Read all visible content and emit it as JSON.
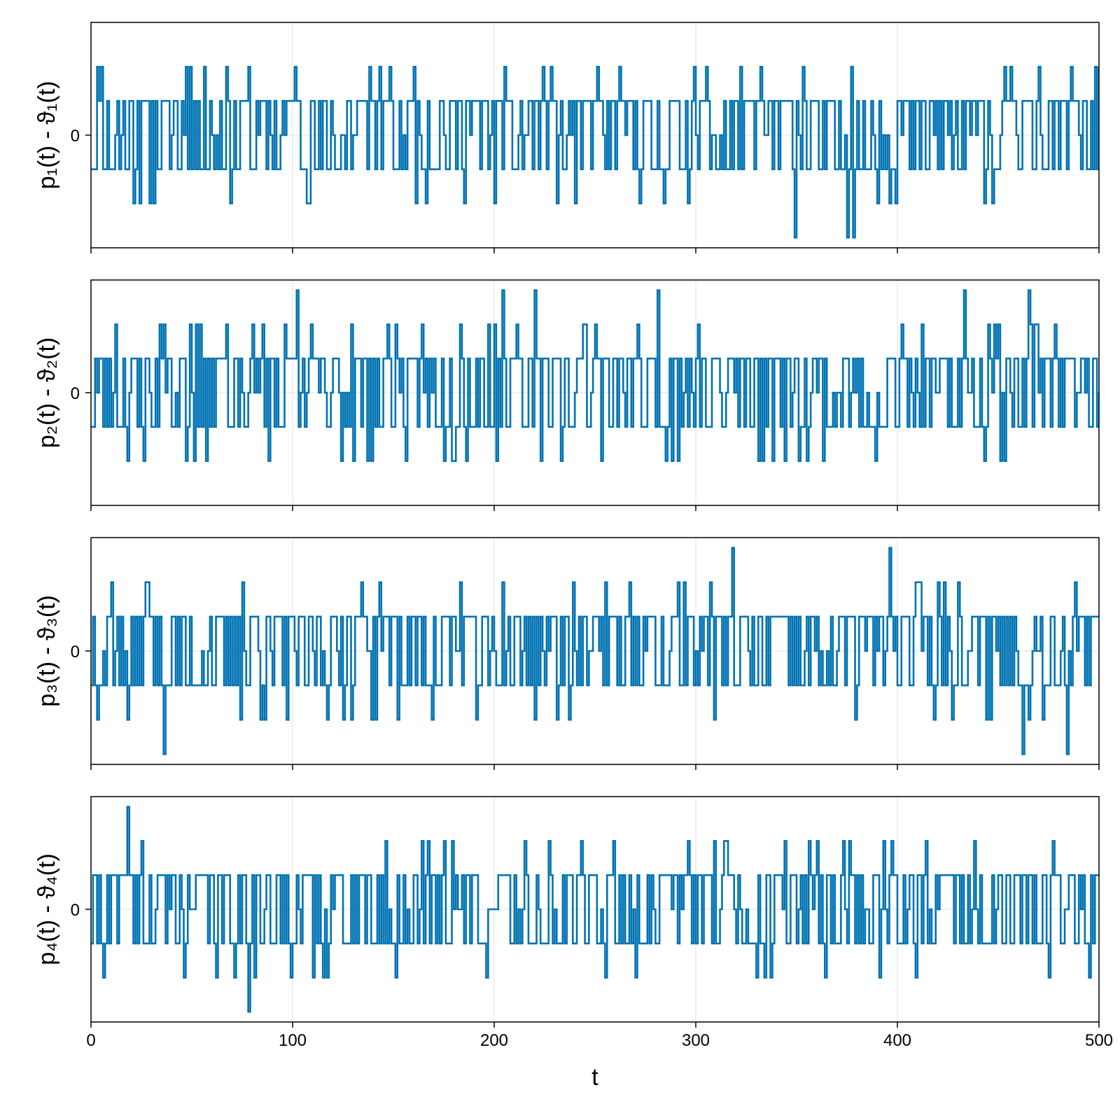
{
  "chart_data": [
    {
      "type": "line",
      "title": "",
      "xlabel": "",
      "ylabel": "p₁(t) - ϑ₁(t)",
      "xlim": [
        0,
        500
      ],
      "ylim": [
        -3.3,
        3.3
      ],
      "xticks": [
        0,
        100,
        200,
        300,
        400,
        500
      ],
      "xtick_labels": [
        "",
        "",
        "",
        "",
        "",
        ""
      ],
      "yticks": [
        0
      ],
      "ytick_labels": [
        "0"
      ],
      "grid": true,
      "series": [
        {
          "values_pattern": "integer-valued noise switching each step, mostly -1, 0, 1; occasional ±2 and rare ±3",
          "seed": 11
        }
      ]
    },
    {
      "type": "line",
      "title": "",
      "xlabel": "",
      "ylabel": "p₂(t) - ϑ₂(t)",
      "xlim": [
        0,
        500
      ],
      "ylim": [
        -3.3,
        3.3
      ],
      "xticks": [
        0,
        100,
        200,
        300,
        400,
        500
      ],
      "xtick_labels": [
        "",
        "",
        "",
        "",
        "",
        ""
      ],
      "yticks": [
        0
      ],
      "ytick_labels": [
        "0"
      ],
      "grid": true,
      "series": [
        {
          "values_pattern": "integer-valued noise switching each step, mostly -1, 0, 1; occasional ±2 and rare ±3",
          "seed": 23
        }
      ]
    },
    {
      "type": "line",
      "title": "",
      "xlabel": "",
      "ylabel": "p₃(t) - ϑ₃(t)",
      "xlim": [
        0,
        500
      ],
      "ylim": [
        -3.3,
        3.3
      ],
      "xticks": [
        0,
        100,
        200,
        300,
        400,
        500
      ],
      "xtick_labels": [
        "",
        "",
        "",
        "",
        "",
        ""
      ],
      "yticks": [
        0
      ],
      "ytick_labels": [
        "0"
      ],
      "grid": true,
      "series": [
        {
          "values_pattern": "integer-valued noise switching each step, mostly -1, 0, 1; occasional ±2 and rare ±3",
          "seed": 37
        }
      ]
    },
    {
      "type": "line",
      "title": "",
      "xlabel": "t",
      "ylabel": "p₄(t) - ϑ₄(t)",
      "xlim": [
        0,
        500
      ],
      "ylim": [
        -3.3,
        3.3
      ],
      "xticks": [
        0,
        100,
        200,
        300,
        400,
        500
      ],
      "xtick_labels": [
        "0",
        "100",
        "200",
        "300",
        "400",
        "500"
      ],
      "yticks": [
        0
      ],
      "ytick_labels": [
        "0"
      ],
      "grid": true,
      "series": [
        {
          "values_pattern": "integer-valued noise switching each step, mostly -1, 0, 1; occasional ±2 and rare ±3",
          "seed": 41
        }
      ]
    }
  ],
  "colors": {
    "series": "#0072b2",
    "grid": "#e6e6e6",
    "frame": "#000000"
  }
}
